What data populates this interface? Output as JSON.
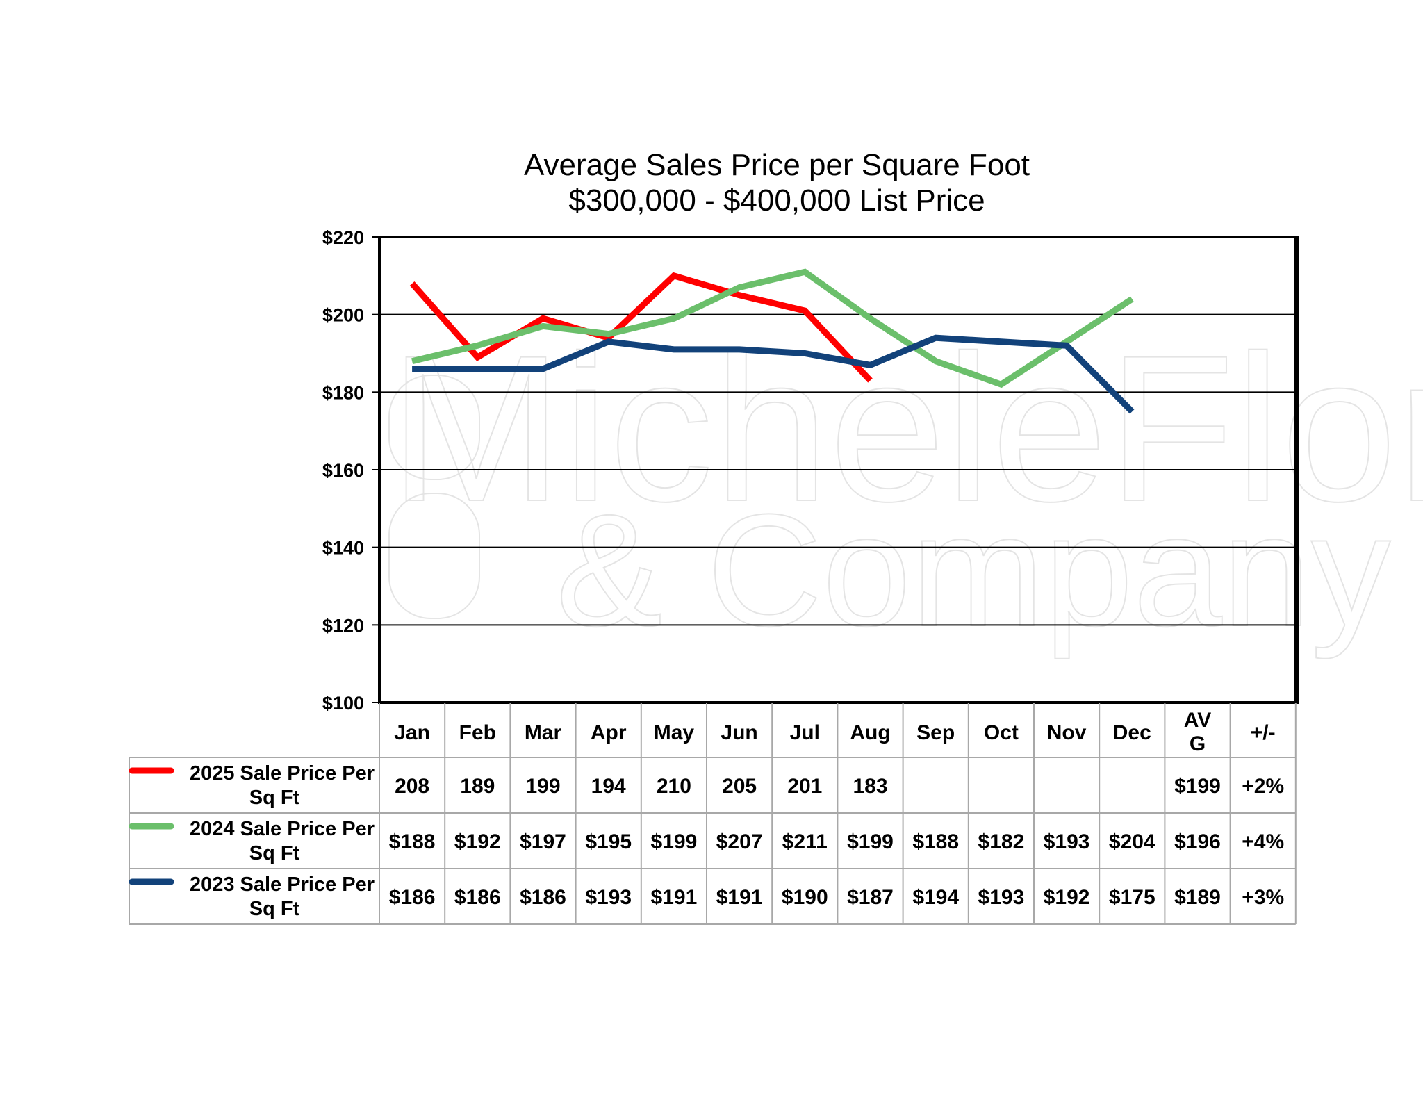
{
  "chart_data": {
    "type": "line",
    "title": "Average Sales Price per Square Foot",
    "subtitle": "$300,000 - $400,000 List Price",
    "categories": [
      "Jan",
      "Feb",
      "Mar",
      "Apr",
      "May",
      "Jun",
      "Jul",
      "Aug",
      "Sep",
      "Oct",
      "Nov",
      "Dec"
    ],
    "ylim": [
      100,
      220
    ],
    "yticks": [
      "$100",
      "$120",
      "$140",
      "$160",
      "$180",
      "$200",
      "$220"
    ],
    "grid": true,
    "watermark": "DY MicheleFlory & Company",
    "table": {
      "extra_headers": [
        "AV\nG",
        "+/-"
      ],
      "avg_header_lines": [
        "AV",
        "G"
      ],
      "change_header": "+/-"
    },
    "series": [
      {
        "name": "2025 Sale Price Per Sq Ft",
        "label_lines": [
          "2025 Sale Price Per",
          "Sq Ft"
        ],
        "color": "#ff0000",
        "values": [
          208,
          189,
          199,
          194,
          210,
          205,
          201,
          183,
          null,
          null,
          null,
          null
        ],
        "cells": [
          "208",
          "189",
          "199",
          "194",
          "210",
          "205",
          "201",
          "183",
          "",
          "",
          "",
          ""
        ],
        "avg": "$199",
        "change": "+2%"
      },
      {
        "name": "2024 Sale Price Per Sq Ft",
        "label_lines": [
          "2024 Sale Price Per",
          "Sq Ft"
        ],
        "color": "#6bbf6b",
        "values": [
          188,
          192,
          197,
          195,
          199,
          207,
          211,
          199,
          188,
          182,
          193,
          204
        ],
        "cells": [
          "$188",
          "$192",
          "$197",
          "$195",
          "$199",
          "$207",
          "$211",
          "$199",
          "$188",
          "$182",
          "$193",
          "$204"
        ],
        "avg": "$196",
        "change": "+4%"
      },
      {
        "name": "2023 Sale Price Per Sq Ft",
        "label_lines": [
          "2023 Sale Price Per",
          "Sq Ft"
        ],
        "color": "#12427a",
        "values": [
          186,
          186,
          186,
          193,
          191,
          191,
          190,
          187,
          194,
          193,
          192,
          175
        ],
        "cells": [
          "$186",
          "$186",
          "$186",
          "$193",
          "$191",
          "$191",
          "$190",
          "$187",
          "$194",
          "$193",
          "$192",
          "$175"
        ],
        "avg": "$189",
        "change": "+3%"
      }
    ]
  }
}
